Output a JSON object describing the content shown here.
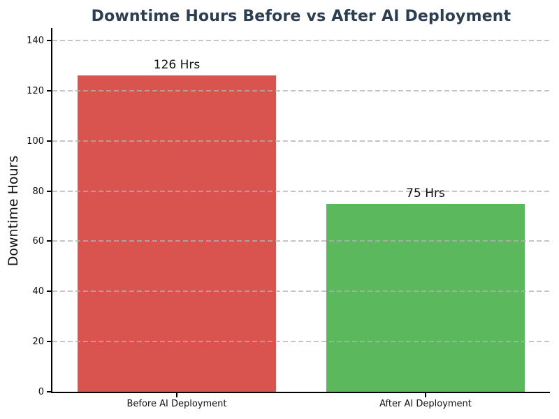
{
  "chart_data": {
    "type": "bar",
    "title": "Downtime Hours Before vs After AI Deployment",
    "xlabel": "",
    "ylabel": "Downtime Hours",
    "categories": [
      "Before AI Deployment",
      "After AI Deployment"
    ],
    "values": [
      126,
      75
    ],
    "bar_labels": [
      "126 Hrs",
      "75 Hrs"
    ],
    "bar_colors": [
      "#d9534f",
      "#5cb85c"
    ],
    "ylim": [
      0,
      145
    ],
    "yticks": [
      0,
      20,
      40,
      60,
      80,
      100,
      120,
      140
    ],
    "grid": "horizontal dashed, drawn over bars",
    "grid_color": "#b2b2b2",
    "legend": "none",
    "title_color": "#2c3e50",
    "spine_color": "#000000",
    "text_color": "#111111"
  }
}
